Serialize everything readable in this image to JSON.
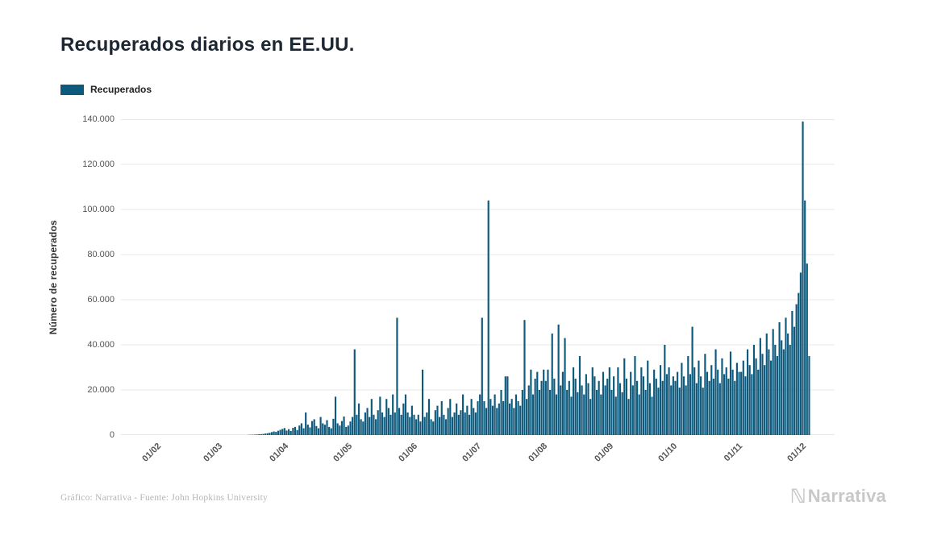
{
  "page": {
    "title": "Recuperados diarios en EE.UU.",
    "footer_credit": "Gráfico: Narrativa - Fuente: John Hopkins University",
    "brand": "Narrativa",
    "brand_mark": "ℕ"
  },
  "legend": {
    "label": "Recuperados"
  },
  "colors": {
    "bar": "#0e5a7d",
    "grid": "#e8e8e8",
    "title": "#1d2733",
    "axis_text": "#555555",
    "footer_text": "#b5b5b5",
    "brand_text": "#c8c8c8"
  },
  "chart_data": {
    "type": "bar",
    "title": "Recuperados diarios en EE.UU.",
    "series_name": "Recuperados",
    "xlabel": "",
    "ylabel": "Número de recuperados",
    "ylim": [
      0,
      140000
    ],
    "grid": true,
    "legend_position": "top-left",
    "y_ticks": [
      0,
      20000,
      40000,
      60000,
      80000,
      100000,
      120000,
      140000
    ],
    "y_tick_labels": [
      "0",
      "20.000",
      "40.000",
      "60.000",
      "80.000",
      "100.000",
      "120.000",
      "140.000"
    ],
    "x_tick_labels": [
      "01/02",
      "01/03",
      "01/04",
      "01/05",
      "01/06",
      "01/07",
      "01/08",
      "01/09",
      "01/10",
      "01/11",
      "01/12"
    ],
    "x_tick_indices": [
      10,
      39,
      70,
      100,
      131,
      161,
      192,
      223,
      253,
      284,
      314
    ],
    "values": [
      0,
      0,
      0,
      0,
      0,
      0,
      0,
      0,
      0,
      0,
      0,
      0,
      0,
      0,
      0,
      0,
      0,
      0,
      0,
      0,
      0,
      0,
      0,
      0,
      0,
      0,
      0,
      0,
      0,
      0,
      0,
      0,
      0,
      0,
      0,
      0,
      0,
      0,
      0,
      0,
      0,
      0,
      1,
      2,
      3,
      5,
      8,
      12,
      17,
      25,
      35,
      50,
      70,
      100,
      140,
      190,
      250,
      320,
      400,
      500,
      650,
      800,
      1000,
      1300,
      1600,
      1400,
      1900,
      2300,
      2700,
      3100,
      2000,
      2600,
      1800,
      3200,
      3600,
      2200,
      4200,
      5200,
      3000,
      10000,
      4600,
      3400,
      6200,
      7000,
      4000,
      3000,
      8000,
      5200,
      4600,
      6600,
      3600,
      3000,
      7200,
      17000,
      5200,
      4200,
      6200,
      8200,
      3600,
      4200,
      6000,
      8000,
      38000,
      9000,
      14000,
      7000,
      6000,
      10000,
      12000,
      8000,
      16000,
      9000,
      7000,
      11000,
      17000,
      10000,
      8000,
      16000,
      12000,
      9000,
      18000,
      10000,
      52000,
      12000,
      9000,
      14000,
      18000,
      10000,
      8000,
      13000,
      9000,
      7000,
      9000,
      6000,
      29000,
      8000,
      10000,
      16000,
      7000,
      6000,
      11000,
      13000,
      8000,
      15000,
      9000,
      7000,
      12000,
      16000,
      8000,
      10000,
      14000,
      9000,
      11000,
      18000,
      10000,
      13000,
      9000,
      16000,
      12000,
      10000,
      15000,
      18000,
      52000,
      15000,
      12000,
      104000,
      16000,
      13000,
      18000,
      12000,
      14000,
      20000,
      15000,
      26000,
      26000,
      14000,
      16000,
      12000,
      18000,
      15000,
      13000,
      20000,
      51000,
      16000,
      22000,
      29000,
      18000,
      25000,
      28000,
      20000,
      24000,
      29000,
      24000,
      29000,
      20000,
      45000,
      25000,
      18000,
      49000,
      22000,
      28000,
      43000,
      20000,
      24000,
      17000,
      30000,
      25000,
      19000,
      35000,
      22000,
      18000,
      27000,
      23000,
      16000,
      30000,
      26000,
      20000,
      24000,
      18000,
      28000,
      22000,
      25000,
      30000,
      20000,
      26000,
      17000,
      30000,
      23000,
      19000,
      34000,
      25000,
      16000,
      28000,
      22000,
      35000,
      24000,
      18000,
      30000,
      26000,
      20000,
      33000,
      23000,
      17000,
      29000,
      25000,
      21000,
      31000,
      24000,
      40000,
      27000,
      30000,
      22000,
      26000,
      24000,
      28000,
      21000,
      32000,
      26000,
      22000,
      35000,
      27000,
      48000,
      30000,
      23000,
      33000,
      26000,
      21000,
      36000,
      28000,
      24000,
      31000,
      25000,
      38000,
      29000,
      23000,
      34000,
      27000,
      30000,
      25000,
      37000,
      29000,
      24000,
      32000,
      28000,
      28000,
      33000,
      26000,
      38000,
      31000,
      27000,
      40000,
      34000,
      29000,
      43000,
      36000,
      31000,
      45000,
      38000,
      33000,
      47000,
      40000,
      35000,
      50000,
      42000,
      38000,
      52000,
      45000,
      40000,
      55000,
      48000,
      58000,
      63000,
      72000,
      139000,
      104000,
      76000,
      35000
    ]
  }
}
